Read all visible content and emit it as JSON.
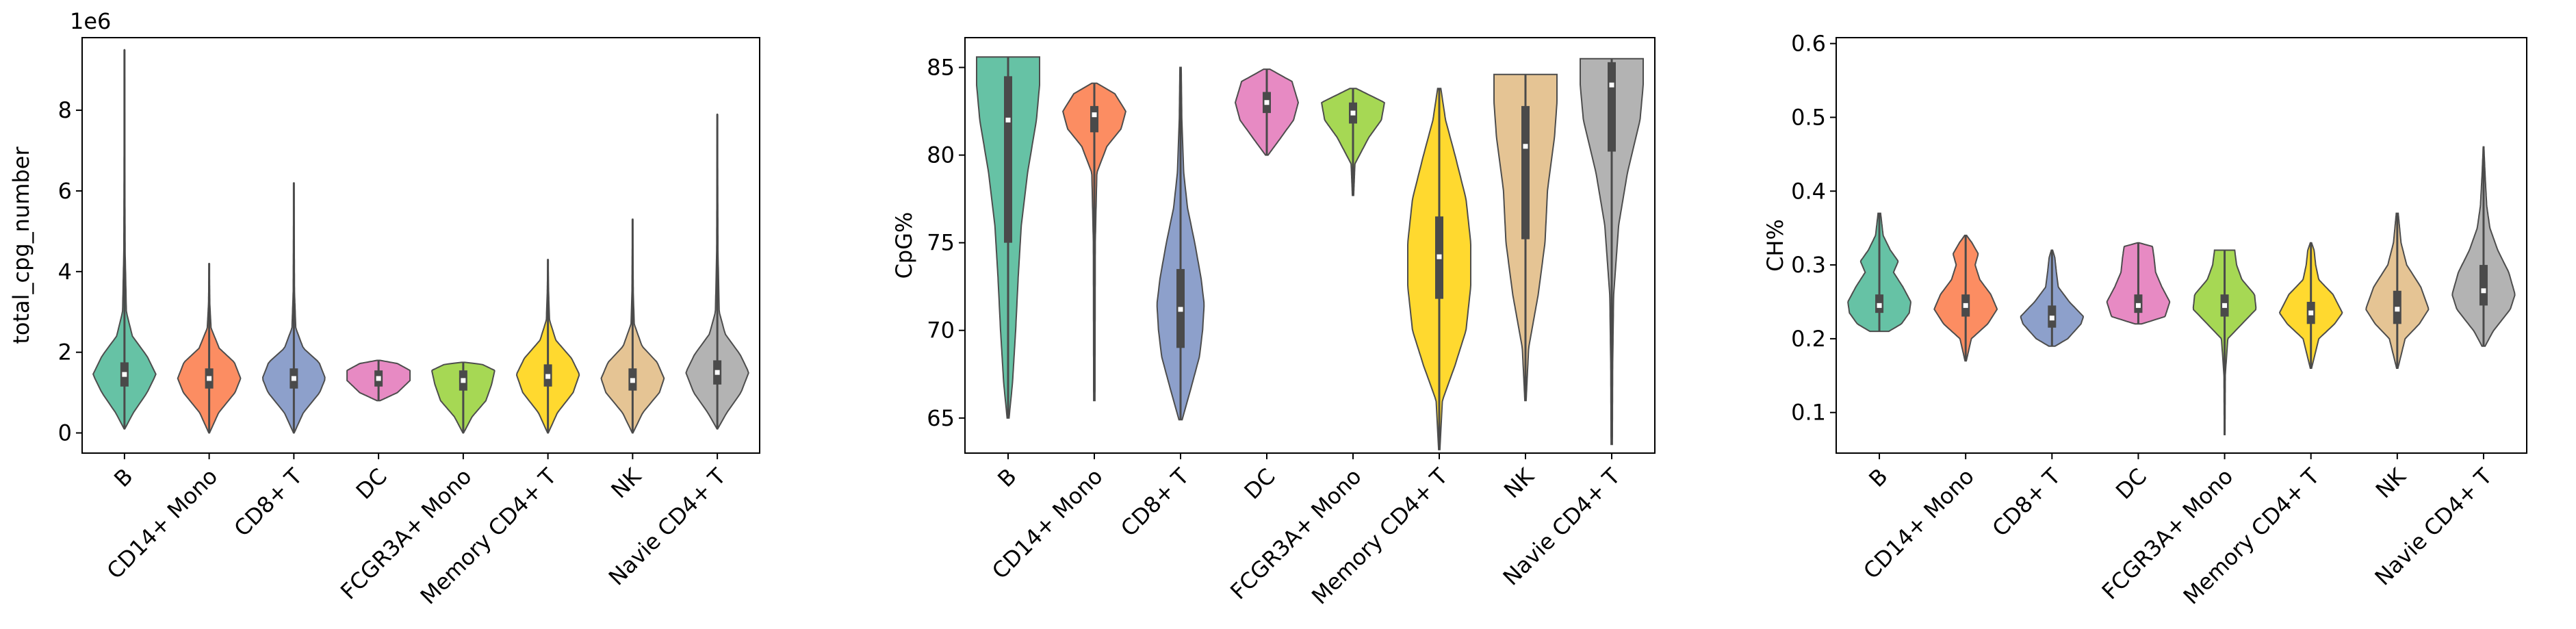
{
  "palette": [
    "#66c2a5",
    "#fc8d62",
    "#8da0cb",
    "#e78ac3",
    "#a6d854",
    "#ffd92f",
    "#e5c494",
    "#b3b3b3"
  ],
  "chart_data": [
    {
      "type": "violin",
      "ylabel": "total_cpg_number",
      "offset_label": "1e6",
      "ylim": [
        -0.5,
        9.8
      ],
      "yticks": [
        0,
        2,
        4,
        6,
        8
      ],
      "categories": [
        "B",
        "CD14+ Mono",
        "CD8+ T",
        "DC",
        "FCGR3A+ Mono",
        "Memory CD4+ T",
        "NK",
        "Navie CD4+ T"
      ],
      "violins": [
        {
          "min": 0.1,
          "max": 9.5,
          "q1": 1.15,
          "median": 1.45,
          "q3": 1.75,
          "profile": [
            [
              0.1,
              0.01
            ],
            [
              0.5,
              0.28
            ],
            [
              1.0,
              0.72
            ],
            [
              1.45,
              1.0
            ],
            [
              1.9,
              0.72
            ],
            [
              2.4,
              0.25
            ],
            [
              3.0,
              0.06
            ],
            [
              4.5,
              0.02
            ],
            [
              6.5,
              0.01
            ],
            [
              9.5,
              0.002
            ]
          ]
        },
        {
          "min": 0.0,
          "max": 4.2,
          "q1": 1.1,
          "median": 1.35,
          "q3": 1.6,
          "profile": [
            [
              0.0,
              0.01
            ],
            [
              0.5,
              0.3
            ],
            [
              1.0,
              0.82
            ],
            [
              1.35,
              1.0
            ],
            [
              1.75,
              0.8
            ],
            [
              2.1,
              0.32
            ],
            [
              2.6,
              0.06
            ],
            [
              3.2,
              0.02
            ],
            [
              4.2,
              0.002
            ]
          ]
        },
        {
          "min": 0.0,
          "max": 6.2,
          "q1": 1.1,
          "median": 1.35,
          "q3": 1.6,
          "profile": [
            [
              0.0,
              0.01
            ],
            [
              0.5,
              0.3
            ],
            [
              1.0,
              0.82
            ],
            [
              1.35,
              1.0
            ],
            [
              1.75,
              0.8
            ],
            [
              2.1,
              0.3
            ],
            [
              2.6,
              0.06
            ],
            [
              3.5,
              0.02
            ],
            [
              6.2,
              0.002
            ]
          ]
        },
        {
          "min": 0.8,
          "max": 1.8,
          "q1": 1.15,
          "median": 1.35,
          "q3": 1.55,
          "profile": [
            [
              0.8,
              0.05
            ],
            [
              1.0,
              0.6
            ],
            [
              1.3,
              1.0
            ],
            [
              1.55,
              1.0
            ],
            [
              1.72,
              0.6
            ],
            [
              1.8,
              0.05
            ]
          ]
        },
        {
          "min": 0.0,
          "max": 1.75,
          "q1": 1.05,
          "median": 1.3,
          "q3": 1.55,
          "profile": [
            [
              0.0,
              0.01
            ],
            [
              0.4,
              0.28
            ],
            [
              0.8,
              0.72
            ],
            [
              1.2,
              0.9
            ],
            [
              1.55,
              1.0
            ],
            [
              1.7,
              0.6
            ],
            [
              1.75,
              0.05
            ]
          ]
        },
        {
          "min": 0.0,
          "max": 4.3,
          "q1": 1.15,
          "median": 1.4,
          "q3": 1.7,
          "profile": [
            [
              0.0,
              0.01
            ],
            [
              0.5,
              0.3
            ],
            [
              1.0,
              0.8
            ],
            [
              1.45,
              1.0
            ],
            [
              1.85,
              0.75
            ],
            [
              2.3,
              0.25
            ],
            [
              2.8,
              0.05
            ],
            [
              3.5,
              0.02
            ],
            [
              4.3,
              0.002
            ]
          ]
        },
        {
          "min": 0.0,
          "max": 5.3,
          "q1": 1.05,
          "median": 1.3,
          "q3": 1.6,
          "profile": [
            [
              0.0,
              0.01
            ],
            [
              0.5,
              0.32
            ],
            [
              1.0,
              0.85
            ],
            [
              1.35,
              1.0
            ],
            [
              1.75,
              0.78
            ],
            [
              2.15,
              0.3
            ],
            [
              2.7,
              0.05
            ],
            [
              3.5,
              0.02
            ],
            [
              5.3,
              0.002
            ]
          ]
        },
        {
          "min": 0.1,
          "max": 7.9,
          "q1": 1.2,
          "median": 1.5,
          "q3": 1.8,
          "profile": [
            [
              0.1,
              0.01
            ],
            [
              0.5,
              0.3
            ],
            [
              1.0,
              0.75
            ],
            [
              1.5,
              1.0
            ],
            [
              1.95,
              0.72
            ],
            [
              2.45,
              0.25
            ],
            [
              3.0,
              0.06
            ],
            [
              4.5,
              0.02
            ],
            [
              7.9,
              0.002
            ]
          ]
        }
      ]
    },
    {
      "type": "violin",
      "ylabel": "CpG%",
      "ylim": [
        63.0,
        86.7
      ],
      "yticks": [
        65,
        70,
        75,
        80,
        85
      ],
      "categories": [
        "B",
        "CD14+ Mono",
        "CD8+ T",
        "DC",
        "FCGR3A+ Mono",
        "Memory CD4+ T",
        "NK",
        "Navie CD4+ T"
      ],
      "violins": [
        {
          "min": 65.0,
          "max": 85.6,
          "q1": 75.0,
          "median": 82.0,
          "q3": 84.5,
          "profile": [
            [
              65.0,
              0.03
            ],
            [
              67.0,
              0.14
            ],
            [
              70.0,
              0.24
            ],
            [
              73.0,
              0.32
            ],
            [
              76.0,
              0.42
            ],
            [
              79.0,
              0.62
            ],
            [
              82.0,
              0.9
            ],
            [
              84.0,
              1.0
            ],
            [
              85.6,
              1.0
            ]
          ]
        },
        {
          "min": 66.0,
          "max": 84.1,
          "q1": 81.3,
          "median": 82.3,
          "q3": 82.8,
          "profile": [
            [
              66.0,
              0.02
            ],
            [
              75.0,
              0.03
            ],
            [
              79.0,
              0.08
            ],
            [
              80.5,
              0.4
            ],
            [
              81.5,
              0.85
            ],
            [
              82.5,
              1.0
            ],
            [
              83.5,
              0.65
            ],
            [
              84.1,
              0.08
            ]
          ]
        },
        {
          "min": 64.9,
          "max": 85.0,
          "q1": 69.0,
          "median": 71.2,
          "q3": 73.5,
          "profile": [
            [
              64.9,
              0.05
            ],
            [
              66.5,
              0.3
            ],
            [
              68.5,
              0.6
            ],
            [
              70.0,
              0.7
            ],
            [
              71.5,
              0.75
            ],
            [
              73.0,
              0.65
            ],
            [
              75.0,
              0.45
            ],
            [
              77.0,
              0.22
            ],
            [
              79.0,
              0.1
            ],
            [
              82.0,
              0.04
            ],
            [
              85.0,
              0.02
            ]
          ]
        },
        {
          "min": 80.0,
          "max": 84.9,
          "q1": 82.4,
          "median": 83.0,
          "q3": 83.6,
          "profile": [
            [
              80.0,
              0.04
            ],
            [
              81.0,
              0.45
            ],
            [
              82.0,
              0.85
            ],
            [
              83.0,
              1.0
            ],
            [
              84.2,
              0.8
            ],
            [
              84.9,
              0.1
            ]
          ]
        },
        {
          "min": 77.7,
          "max": 83.8,
          "q1": 81.8,
          "median": 82.4,
          "q3": 83.0,
          "profile": [
            [
              77.7,
              0.02
            ],
            [
              79.5,
              0.06
            ],
            [
              81.0,
              0.5
            ],
            [
              82.0,
              0.9
            ],
            [
              83.0,
              1.0
            ],
            [
              83.8,
              0.1
            ]
          ]
        },
        {
          "min": 63.2,
          "max": 83.8,
          "q1": 71.8,
          "median": 74.2,
          "q3": 76.5,
          "profile": [
            [
              63.2,
              0.02
            ],
            [
              66.0,
              0.1
            ],
            [
              68.0,
              0.5
            ],
            [
              70.0,
              0.85
            ],
            [
              72.5,
              1.0
            ],
            [
              75.0,
              1.0
            ],
            [
              77.5,
              0.85
            ],
            [
              80.0,
              0.5
            ],
            [
              82.0,
              0.2
            ],
            [
              83.8,
              0.05
            ]
          ]
        },
        {
          "min": 66.0,
          "max": 84.6,
          "q1": 75.2,
          "median": 80.5,
          "q3": 82.8,
          "profile": [
            [
              66.0,
              0.02
            ],
            [
              69.0,
              0.1
            ],
            [
              72.0,
              0.4
            ],
            [
              75.0,
              0.62
            ],
            [
              78.0,
              0.7
            ],
            [
              81.0,
              0.92
            ],
            [
              83.0,
              1.0
            ],
            [
              84.6,
              1.0
            ]
          ]
        },
        {
          "min": 63.5,
          "max": 85.5,
          "q1": 80.2,
          "median": 84.0,
          "q3": 85.3,
          "profile": [
            [
              63.5,
              0.02
            ],
            [
              68.0,
              0.03
            ],
            [
              72.0,
              0.06
            ],
            [
              76.0,
              0.22
            ],
            [
              79.0,
              0.5
            ],
            [
              82.0,
              0.9
            ],
            [
              84.0,
              1.0
            ],
            [
              85.5,
              1.0
            ]
          ]
        }
      ]
    },
    {
      "type": "violin",
      "ylabel": "CH%",
      "ylim": [
        0.045,
        0.608
      ],
      "yticks": [
        0.1,
        0.2,
        0.3,
        0.4,
        0.5,
        0.6
      ],
      "categories": [
        "B",
        "CD14+ Mono",
        "CD8+ T",
        "DC",
        "FCGR3A+ Mono",
        "Memory CD4+ T",
        "NK",
        "Navie CD4+ T"
      ],
      "violins": [
        {
          "min": 0.21,
          "max": 0.37,
          "q1": 0.235,
          "median": 0.245,
          "q3": 0.26,
          "profile": [
            [
              0.21,
              0.3
            ],
            [
              0.22,
              0.7
            ],
            [
              0.235,
              0.95
            ],
            [
              0.25,
              1.0
            ],
            [
              0.27,
              0.75
            ],
            [
              0.29,
              0.45
            ],
            [
              0.305,
              0.6
            ],
            [
              0.32,
              0.35
            ],
            [
              0.34,
              0.12
            ],
            [
              0.37,
              0.04
            ]
          ]
        },
        {
          "min": 0.17,
          "max": 0.34,
          "q1": 0.23,
          "median": 0.245,
          "q3": 0.26,
          "profile": [
            [
              0.17,
              0.02
            ],
            [
              0.2,
              0.18
            ],
            [
              0.22,
              0.7
            ],
            [
              0.24,
              1.0
            ],
            [
              0.26,
              0.8
            ],
            [
              0.28,
              0.45
            ],
            [
              0.3,
              0.3
            ],
            [
              0.315,
              0.4
            ],
            [
              0.33,
              0.2
            ],
            [
              0.34,
              0.03
            ]
          ]
        },
        {
          "min": 0.19,
          "max": 0.32,
          "q1": 0.215,
          "median": 0.228,
          "q3": 0.245,
          "profile": [
            [
              0.19,
              0.1
            ],
            [
              0.2,
              0.5
            ],
            [
              0.22,
              0.92
            ],
            [
              0.23,
              1.0
            ],
            [
              0.25,
              0.55
            ],
            [
              0.27,
              0.2
            ],
            [
              0.29,
              0.14
            ],
            [
              0.31,
              0.09
            ],
            [
              0.32,
              0.02
            ]
          ]
        },
        {
          "min": 0.22,
          "max": 0.33,
          "q1": 0.235,
          "median": 0.245,
          "q3": 0.26,
          "profile": [
            [
              0.22,
              0.1
            ],
            [
              0.23,
              0.85
            ],
            [
              0.25,
              1.0
            ],
            [
              0.27,
              0.75
            ],
            [
              0.29,
              0.55
            ],
            [
              0.31,
              0.5
            ],
            [
              0.325,
              0.45
            ],
            [
              0.33,
              0.02
            ]
          ]
        },
        {
          "min": 0.07,
          "max": 0.32,
          "q1": 0.23,
          "median": 0.245,
          "q3": 0.26,
          "profile": [
            [
              0.07,
              0.01
            ],
            [
              0.15,
              0.02
            ],
            [
              0.2,
              0.1
            ],
            [
              0.22,
              0.55
            ],
            [
              0.24,
              1.0
            ],
            [
              0.26,
              0.95
            ],
            [
              0.28,
              0.55
            ],
            [
              0.3,
              0.38
            ],
            [
              0.32,
              0.32
            ]
          ]
        },
        {
          "min": 0.16,
          "max": 0.33,
          "q1": 0.22,
          "median": 0.235,
          "q3": 0.25,
          "profile": [
            [
              0.16,
              0.02
            ],
            [
              0.2,
              0.25
            ],
            [
              0.22,
              0.75
            ],
            [
              0.235,
              1.0
            ],
            [
              0.26,
              0.7
            ],
            [
              0.28,
              0.25
            ],
            [
              0.3,
              0.15
            ],
            [
              0.32,
              0.1
            ],
            [
              0.33,
              0.02
            ]
          ]
        },
        {
          "min": 0.16,
          "max": 0.37,
          "q1": 0.22,
          "median": 0.24,
          "q3": 0.265,
          "profile": [
            [
              0.16,
              0.02
            ],
            [
              0.2,
              0.25
            ],
            [
              0.22,
              0.7
            ],
            [
              0.24,
              1.0
            ],
            [
              0.27,
              0.75
            ],
            [
              0.3,
              0.3
            ],
            [
              0.33,
              0.12
            ],
            [
              0.37,
              0.03
            ]
          ]
        },
        {
          "min": 0.19,
          "max": 0.46,
          "q1": 0.245,
          "median": 0.265,
          "q3": 0.3,
          "profile": [
            [
              0.19,
              0.05
            ],
            [
              0.21,
              0.3
            ],
            [
              0.24,
              0.85
            ],
            [
              0.26,
              1.0
            ],
            [
              0.29,
              0.8
            ],
            [
              0.32,
              0.45
            ],
            [
              0.35,
              0.2
            ],
            [
              0.38,
              0.1
            ],
            [
              0.42,
              0.05
            ],
            [
              0.46,
              0.01
            ]
          ]
        }
      ]
    }
  ]
}
